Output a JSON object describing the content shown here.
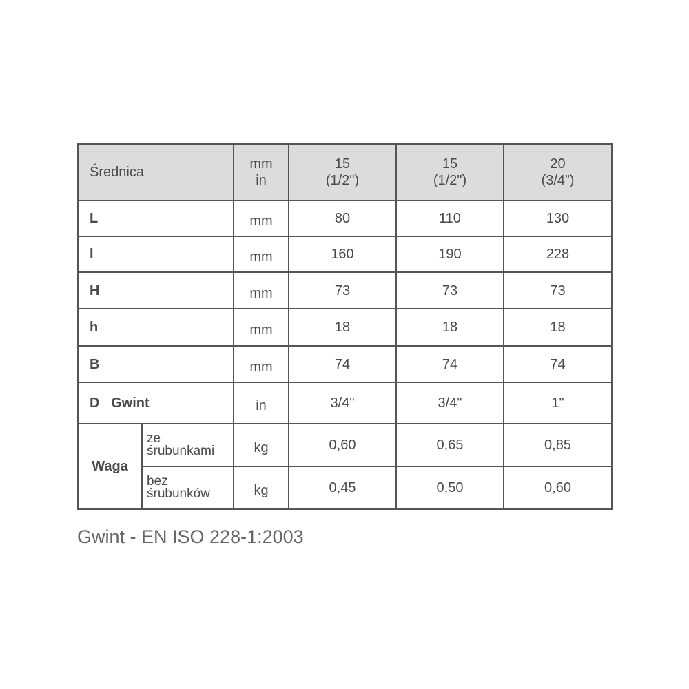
{
  "header": {
    "label": "Średnica",
    "unit_mm": "mm",
    "unit_in": "in",
    "columns": [
      {
        "mm": "15",
        "in": "(1/2\")"
      },
      {
        "mm": "15",
        "in": "(1/2\")"
      },
      {
        "mm": "20",
        "in": "(3/4”)"
      }
    ]
  },
  "rows": [
    {
      "label": "L",
      "unit": "mm",
      "values": [
        "80",
        "110",
        "130"
      ]
    },
    {
      "label": "l",
      "unit": "mm",
      "values": [
        "160",
        "190",
        "228"
      ]
    },
    {
      "label": "H",
      "unit": "mm",
      "values": [
        "73",
        "73",
        "73"
      ]
    },
    {
      "label": "h",
      "unit": "mm",
      "values": [
        "18",
        "18",
        "18"
      ]
    },
    {
      "label": "B",
      "unit": "mm",
      "values": [
        "74",
        "74",
        "74"
      ]
    },
    {
      "label": "D   Gwint",
      "unit": "in",
      "values": [
        "3/4\"",
        "3/4\"",
        "1\""
      ]
    }
  ],
  "weight": {
    "label": "Waga",
    "rows": [
      {
        "sub1": "ze",
        "sub2": "śrubunkami",
        "unit": "kg",
        "values": [
          "0,60",
          "0,65",
          "0,85"
        ]
      },
      {
        "sub1": "bez",
        "sub2": "śrubunków",
        "unit": "kg",
        "values": [
          "0,45",
          "0,50",
          "0,60"
        ]
      }
    ]
  },
  "note": "Gwint - EN ISO 228-1:2003"
}
